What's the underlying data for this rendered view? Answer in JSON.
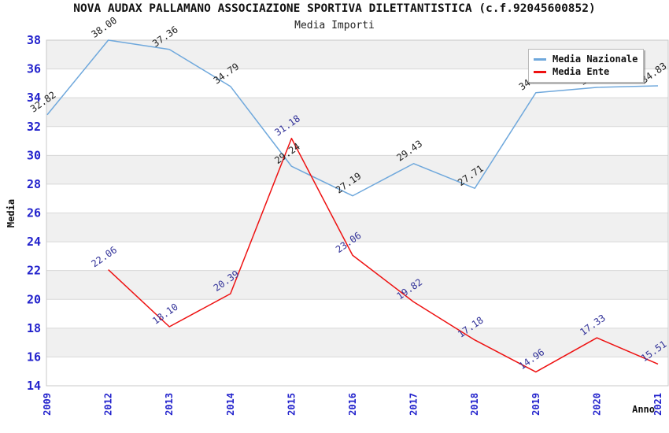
{
  "header": {
    "title": "NOVA AUDAX PALLAMANO ASSOCIAZIONE SPORTIVA DILETTANTISTICA (c.f.92045600852)",
    "subtitle": "Media Importi"
  },
  "axes": {
    "y_label": "Media",
    "x_label": "Anno",
    "y_ticks": [
      38,
      36,
      34,
      32,
      30,
      28,
      26,
      24,
      22,
      20,
      18,
      16,
      14
    ],
    "x_ticks": [
      "2009",
      "2012",
      "2013",
      "2014",
      "2015",
      "2016",
      "2017",
      "2018",
      "2019",
      "2020",
      "2021"
    ],
    "tick_color": "#2222cc"
  },
  "legend": {
    "items": [
      {
        "label": "Media Nazionale",
        "color": "#6fa8dc"
      },
      {
        "label": "Media Ente",
        "color": "#ee1111"
      }
    ]
  },
  "colors": {
    "band_gray": "#f0f0f0",
    "gridline": "#d8d8d8",
    "frame": "#c8c8c8",
    "axis_text": "#111111"
  },
  "chart_data": {
    "type": "line",
    "title": "Media Importi",
    "categories": [
      "2009",
      "2012",
      "2013",
      "2014",
      "2015",
      "2016",
      "2017",
      "2018",
      "2019",
      "2020",
      "2021"
    ],
    "series": [
      {
        "name": "Media Nazionale",
        "color": "#6fa8dc",
        "label_color": "#222222",
        "values": [
          32.82,
          38.0,
          37.36,
          34.79,
          29.24,
          27.19,
          29.43,
          27.71,
          34.35,
          34.72,
          34.83
        ]
      },
      {
        "name": "Media Ente",
        "color": "#ee1111",
        "label_color": "#333399",
        "values": [
          null,
          22.06,
          18.1,
          20.39,
          31.18,
          23.06,
          19.82,
          17.18,
          14.96,
          17.33,
          15.51
        ]
      }
    ],
    "ylim": [
      14,
      38
    ],
    "xlabel": "Anno",
    "ylabel": "Media",
    "grid": "horizontal gridlines with alternating gray bands every 2 units",
    "legend_position": "top-right",
    "point_labels": "each point labeled with value, rotated ~35deg"
  }
}
